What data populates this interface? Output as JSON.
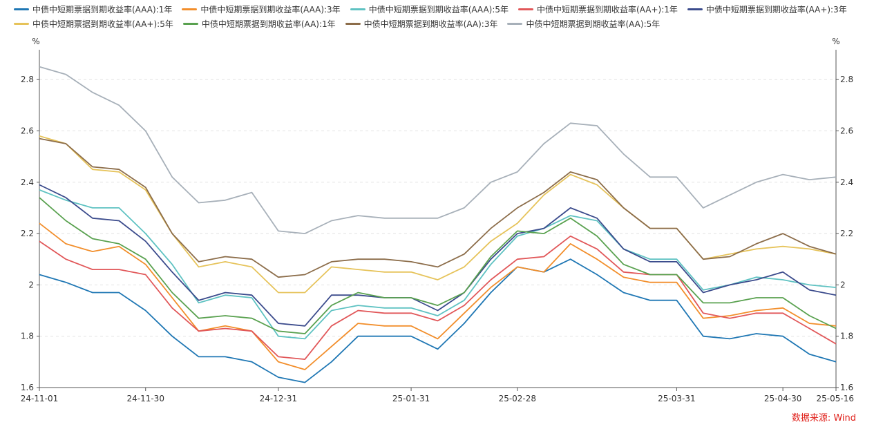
{
  "chart_data": {
    "type": "line",
    "unit_left": "%",
    "unit_right": "%",
    "ylim": [
      1.6,
      2.9
    ],
    "yticks": [
      "1.6",
      "1.8",
      "2",
      "2.2",
      "2.4",
      "2.6",
      "2.8"
    ],
    "xticks": [
      "24-11-01",
      "24-11-30",
      "24-12-31",
      "25-01-31",
      "25-02-28",
      "25-03-31",
      "25-04-30",
      "25-05-16"
    ],
    "x": [
      "24-11-01",
      "24-11-08",
      "24-11-15",
      "24-11-22",
      "24-11-30",
      "24-12-06",
      "24-12-13",
      "24-12-20",
      "24-12-27",
      "24-12-31",
      "25-01-03",
      "25-01-10",
      "25-01-17",
      "25-01-24",
      "25-01-31",
      "25-02-07",
      "25-02-14",
      "25-02-21",
      "25-02-28",
      "25-03-07",
      "25-03-12",
      "25-03-14",
      "25-03-21",
      "25-03-28",
      "25-03-31",
      "25-04-07",
      "25-04-14",
      "25-04-21",
      "25-04-30",
      "25-05-09",
      "25-05-16"
    ],
    "series": [
      {
        "name": "中债中短期票据到期收益率(AAA):1年",
        "color": "#1f77b4",
        "values": [
          2.04,
          2.01,
          1.97,
          1.97,
          1.9,
          1.8,
          1.72,
          1.72,
          1.7,
          1.64,
          1.62,
          1.7,
          1.8,
          1.8,
          1.8,
          1.75,
          1.85,
          1.97,
          2.07,
          2.05,
          2.1,
          2.04,
          1.97,
          1.94,
          1.94,
          1.8,
          1.79,
          1.81,
          1.8,
          1.73,
          1.7
        ]
      },
      {
        "name": "中债中短期票据到期收益率(AAA):3年",
        "color": "#f28e2b",
        "values": [
          2.24,
          2.16,
          2.13,
          2.15,
          2.08,
          1.95,
          1.82,
          1.84,
          1.82,
          1.7,
          1.67,
          1.76,
          1.85,
          1.84,
          1.84,
          1.79,
          1.89,
          1.99,
          2.07,
          2.05,
          2.16,
          2.1,
          2.03,
          2.01,
          2.01,
          1.87,
          1.88,
          1.9,
          1.91,
          1.85,
          1.84
        ]
      },
      {
        "name": "中债中短期票据到期收益率(AAA):5年",
        "color": "#5ec2c2",
        "values": [
          2.37,
          2.33,
          2.3,
          2.3,
          2.2,
          2.08,
          1.93,
          1.96,
          1.95,
          1.8,
          1.79,
          1.9,
          1.92,
          1.91,
          1.91,
          1.88,
          1.94,
          2.08,
          2.19,
          2.22,
          2.27,
          2.25,
          2.14,
          2.1,
          2.1,
          1.98,
          2.0,
          2.03,
          2.02,
          2.0,
          1.99
        ]
      },
      {
        "name": "中债中短期票据到期收益率(AA+):1年",
        "color": "#e15759",
        "values": [
          2.17,
          2.1,
          2.06,
          2.06,
          2.04,
          1.91,
          1.82,
          1.83,
          1.82,
          1.72,
          1.71,
          1.84,
          1.9,
          1.89,
          1.89,
          1.86,
          1.92,
          2.02,
          2.1,
          2.11,
          2.19,
          2.14,
          2.05,
          2.04,
          2.04,
          1.89,
          1.87,
          1.89,
          1.89,
          1.83,
          1.77
        ]
      },
      {
        "name": "中债中短期票据到期收益率(AA+):3年",
        "color": "#3b4b8c",
        "values": [
          2.39,
          2.34,
          2.26,
          2.25,
          2.17,
          2.05,
          1.94,
          1.97,
          1.96,
          1.85,
          1.84,
          1.96,
          1.96,
          1.95,
          1.95,
          1.9,
          1.97,
          2.1,
          2.2,
          2.22,
          2.3,
          2.26,
          2.14,
          2.09,
          2.09,
          1.97,
          2.0,
          2.02,
          2.05,
          1.98,
          1.96
        ]
      },
      {
        "name": "中债中短期票据到期收益率(AA+):5年",
        "color": "#e6c35a",
        "values": [
          2.58,
          2.55,
          2.45,
          2.44,
          2.37,
          2.2,
          2.07,
          2.09,
          2.07,
          1.97,
          1.97,
          2.07,
          2.06,
          2.05,
          2.05,
          2.02,
          2.07,
          2.17,
          2.24,
          2.35,
          2.43,
          2.39,
          2.3,
          2.22,
          2.22,
          2.1,
          2.12,
          2.14,
          2.15,
          2.14,
          2.12
        ]
      },
      {
        "name": "中债中短期票据到期收益率(AA):1年",
        "color": "#59a14f",
        "values": [
          2.34,
          2.25,
          2.18,
          2.16,
          2.1,
          1.97,
          1.87,
          1.88,
          1.87,
          1.82,
          1.81,
          1.92,
          1.97,
          1.95,
          1.95,
          1.92,
          1.97,
          2.11,
          2.21,
          2.2,
          2.26,
          2.19,
          2.08,
          2.04,
          2.04,
          1.93,
          1.93,
          1.95,
          1.95,
          1.88,
          1.83
        ]
      },
      {
        "name": "中债中短期票据到期收益率(AA):3年",
        "color": "#8c6d4a",
        "values": [
          2.57,
          2.55,
          2.46,
          2.45,
          2.38,
          2.2,
          2.09,
          2.11,
          2.1,
          2.03,
          2.04,
          2.09,
          2.1,
          2.1,
          2.09,
          2.07,
          2.12,
          2.22,
          2.3,
          2.36,
          2.44,
          2.41,
          2.3,
          2.22,
          2.22,
          2.1,
          2.11,
          2.16,
          2.2,
          2.15,
          2.12
        ]
      },
      {
        "name": "中债中短期票据到期收益率(AA):5年",
        "color": "#a7b0b9",
        "values": [
          2.85,
          2.82,
          2.75,
          2.7,
          2.6,
          2.42,
          2.32,
          2.33,
          2.36,
          2.21,
          2.2,
          2.25,
          2.27,
          2.26,
          2.26,
          2.26,
          2.3,
          2.4,
          2.44,
          2.55,
          2.63,
          2.62,
          2.51,
          2.42,
          2.42,
          2.3,
          2.35,
          2.4,
          2.43,
          2.41,
          2.42
        ]
      }
    ]
  },
  "source": "数据来源: Wind"
}
